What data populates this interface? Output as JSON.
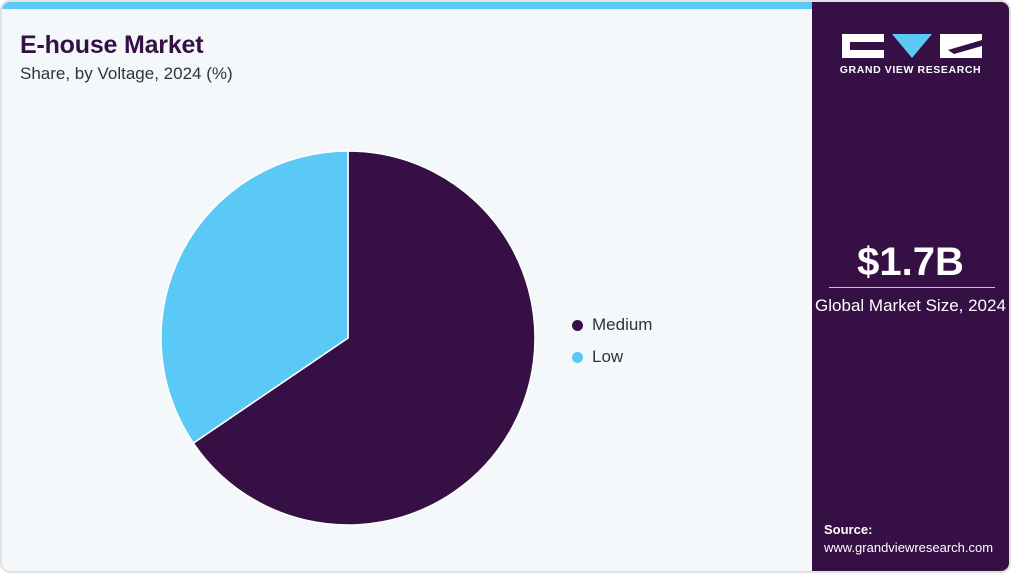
{
  "header": {
    "title": "E-house Market",
    "subtitle": "Share, by Voltage, 2024 (%)"
  },
  "colors": {
    "brand_purple": "#361044",
    "accent_blue": "#5bc9f5",
    "title_text": "#361044",
    "background": "#f4f8fb"
  },
  "chart_data": {
    "type": "pie",
    "title": "E-house Market",
    "subtitle": "Share, by Voltage, 2024 (%)",
    "start": "12 o'clock, clockwise",
    "slices": [
      {
        "name": "Medium",
        "value": 65.5,
        "color": "#361044"
      },
      {
        "name": "Low",
        "value": 34.5,
        "color": "#5bc9f5"
      }
    ],
    "legend": {
      "position": "right",
      "items": [
        "Medium",
        "Low"
      ]
    }
  },
  "sidebar": {
    "brand_name": "GRAND VIEW RESEARCH",
    "logo_icon": "gvr-logo-icon",
    "market_size_value": "$1.7B",
    "market_size_label": "Global Market Size, 2024",
    "source_label": "Source:",
    "source_url": "www.grandviewresearch.com"
  }
}
